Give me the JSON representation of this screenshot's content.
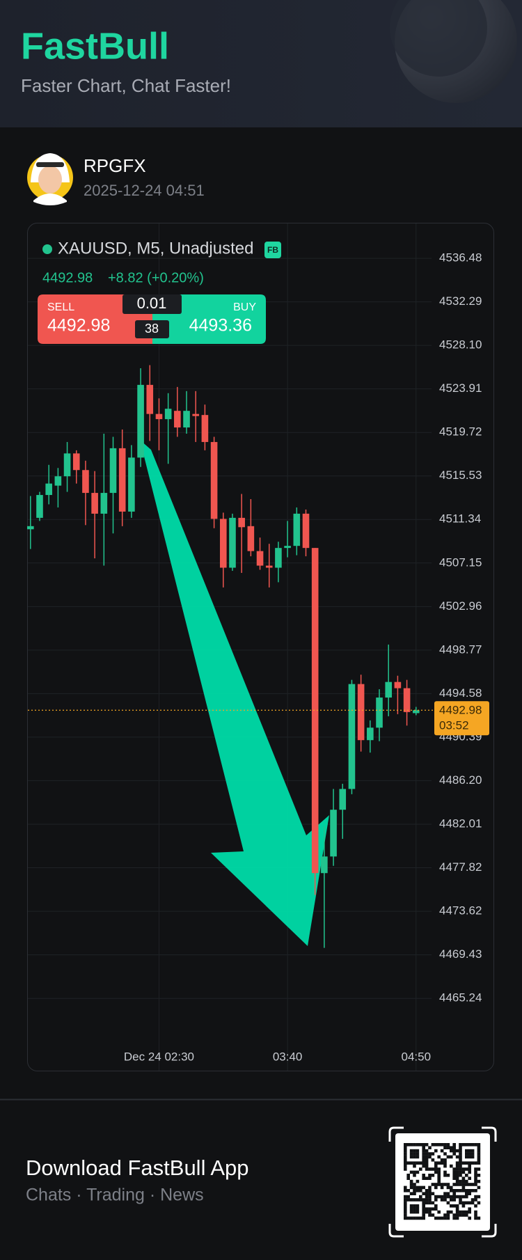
{
  "header": {
    "title": "FastBull",
    "subtitle": "Faster Chart, Chat Faster!"
  },
  "post": {
    "user": "RPGFX",
    "date": "2025-12-24 04:51"
  },
  "chart_data": {
    "type": "candlestick",
    "symbol": "XAUUSD, M5, Unadjusted",
    "badge": "FB",
    "quote": {
      "price": 4492.98,
      "change": "+8.82 (+0.20%)"
    },
    "trade": {
      "sell_label": "SELL",
      "sell": 4492.98,
      "lot": 0.01,
      "spread": 38,
      "buy_label": "BUY",
      "buy": 4493.36
    },
    "last_price": 4492.98,
    "countdown": "03:52",
    "categories": [
      null,
      null,
      null,
      null,
      null,
      null,
      null,
      null,
      null,
      null,
      null,
      null,
      null,
      null,
      "Dec 24 02:30",
      null,
      null,
      null,
      null,
      null,
      null,
      null,
      null,
      null,
      null,
      null,
      null,
      null,
      "03:40",
      null,
      null,
      null,
      null,
      null,
      null,
      null,
      null,
      null,
      null,
      null,
      null,
      null,
      "04:50"
    ],
    "open": [
      4510.4,
      4511.5,
      4513.7,
      4514.6,
      4515.5,
      4517.7,
      4516.1,
      4513.9,
      4511.9,
      4513.9,
      4518.2,
      4512.1,
      4517.3,
      4524.3,
      4521.5,
      4521.0,
      4521.8,
      4520.2,
      4521.5,
      4521.4,
      4518.8,
      4511.4,
      4506.7,
      4511.5,
      4510.7,
      4508.3,
      4506.9,
      4506.7,
      4508.6,
      4508.8,
      4511.9,
      4508.6,
      4477.3,
      4478.9,
      4483.4,
      4485.4,
      4495.5,
      4490.1,
      4491.3,
      4494.2,
      4495.7,
      4495.1,
      4492.7
    ],
    "high": [
      4513.6,
      4514.0,
      4516.6,
      4516.3,
      4518.8,
      4518.0,
      4517.0,
      4516.0,
      4519.6,
      4519.3,
      4520.0,
      4518.5,
      4525.9,
      4526.2,
      4523.0,
      4523.5,
      4524.1,
      4523.7,
      4523.7,
      4522.4,
      4519.3,
      4512.0,
      4511.9,
      4513.8,
      4513.3,
      4509.6,
      4509.0,
      4509.2,
      4511.2,
      4512.5,
      4512.3,
      4508.6,
      4481.8,
      4485.4,
      4485.9,
      4495.9,
      4496.4,
      4492.0,
      4495.0,
      4499.3,
      4496.3,
      4495.9,
      4493.3
    ],
    "low": [
      4508.5,
      4511.2,
      4512.8,
      4512.5,
      4514.0,
      4514.8,
      4510.8,
      4507.6,
      4506.9,
      4510.0,
      4510.7,
      4511.5,
      4516.4,
      4518.9,
      4518.0,
      4516.7,
      4519.3,
      4519.6,
      4518.8,
      4518.0,
      4510.5,
      4504.8,
      4506.4,
      4506.2,
      4507.8,
      4506.5,
      4504.8,
      4505.3,
      4507.7,
      4507.9,
      4507.8,
      4475.2,
      4470.1,
      4478.0,
      4480.6,
      4484.9,
      4489.0,
      4488.9,
      4490.0,
      4492.4,
      4492.6,
      4491.5,
      4492.5
    ],
    "close": [
      4510.7,
      4513.7,
      4514.8,
      4515.5,
      4517.7,
      4516.1,
      4513.9,
      4511.9,
      4513.9,
      4518.2,
      4512.1,
      4517.3,
      4524.3,
      4521.5,
      4521.0,
      4522.0,
      4520.2,
      4521.8,
      4521.3,
      4518.8,
      4511.4,
      4506.7,
      4511.5,
      4510.6,
      4508.3,
      4506.9,
      4506.7,
      4508.6,
      4508.8,
      4511.9,
      4508.6,
      4477.3,
      4478.9,
      4483.4,
      4485.4,
      4495.5,
      4490.1,
      4491.3,
      4494.2,
      4495.7,
      4495.1,
      4492.8,
      4492.98
    ],
    "up_color": "#22c38e",
    "down_color": "#f05650",
    "ylim": [
      4460.83,
      4539.57
    ],
    "yticks": [
      4536.48,
      4532.29,
      {
        "value": 4528.1,
        "label": "4528.10"
      },
      4523.91,
      4519.72,
      4515.53,
      4511.34,
      4507.15,
      4502.96,
      4498.77,
      4494.58,
      4490.39,
      {
        "value": 4486.2,
        "label": "4486.20"
      },
      4482.01,
      4477.82,
      4473.62,
      4469.43,
      4465.24
    ],
    "grid": true
  },
  "footer": {
    "title": "Download FastBull App",
    "subtitle": "Chats · Trading · News"
  }
}
